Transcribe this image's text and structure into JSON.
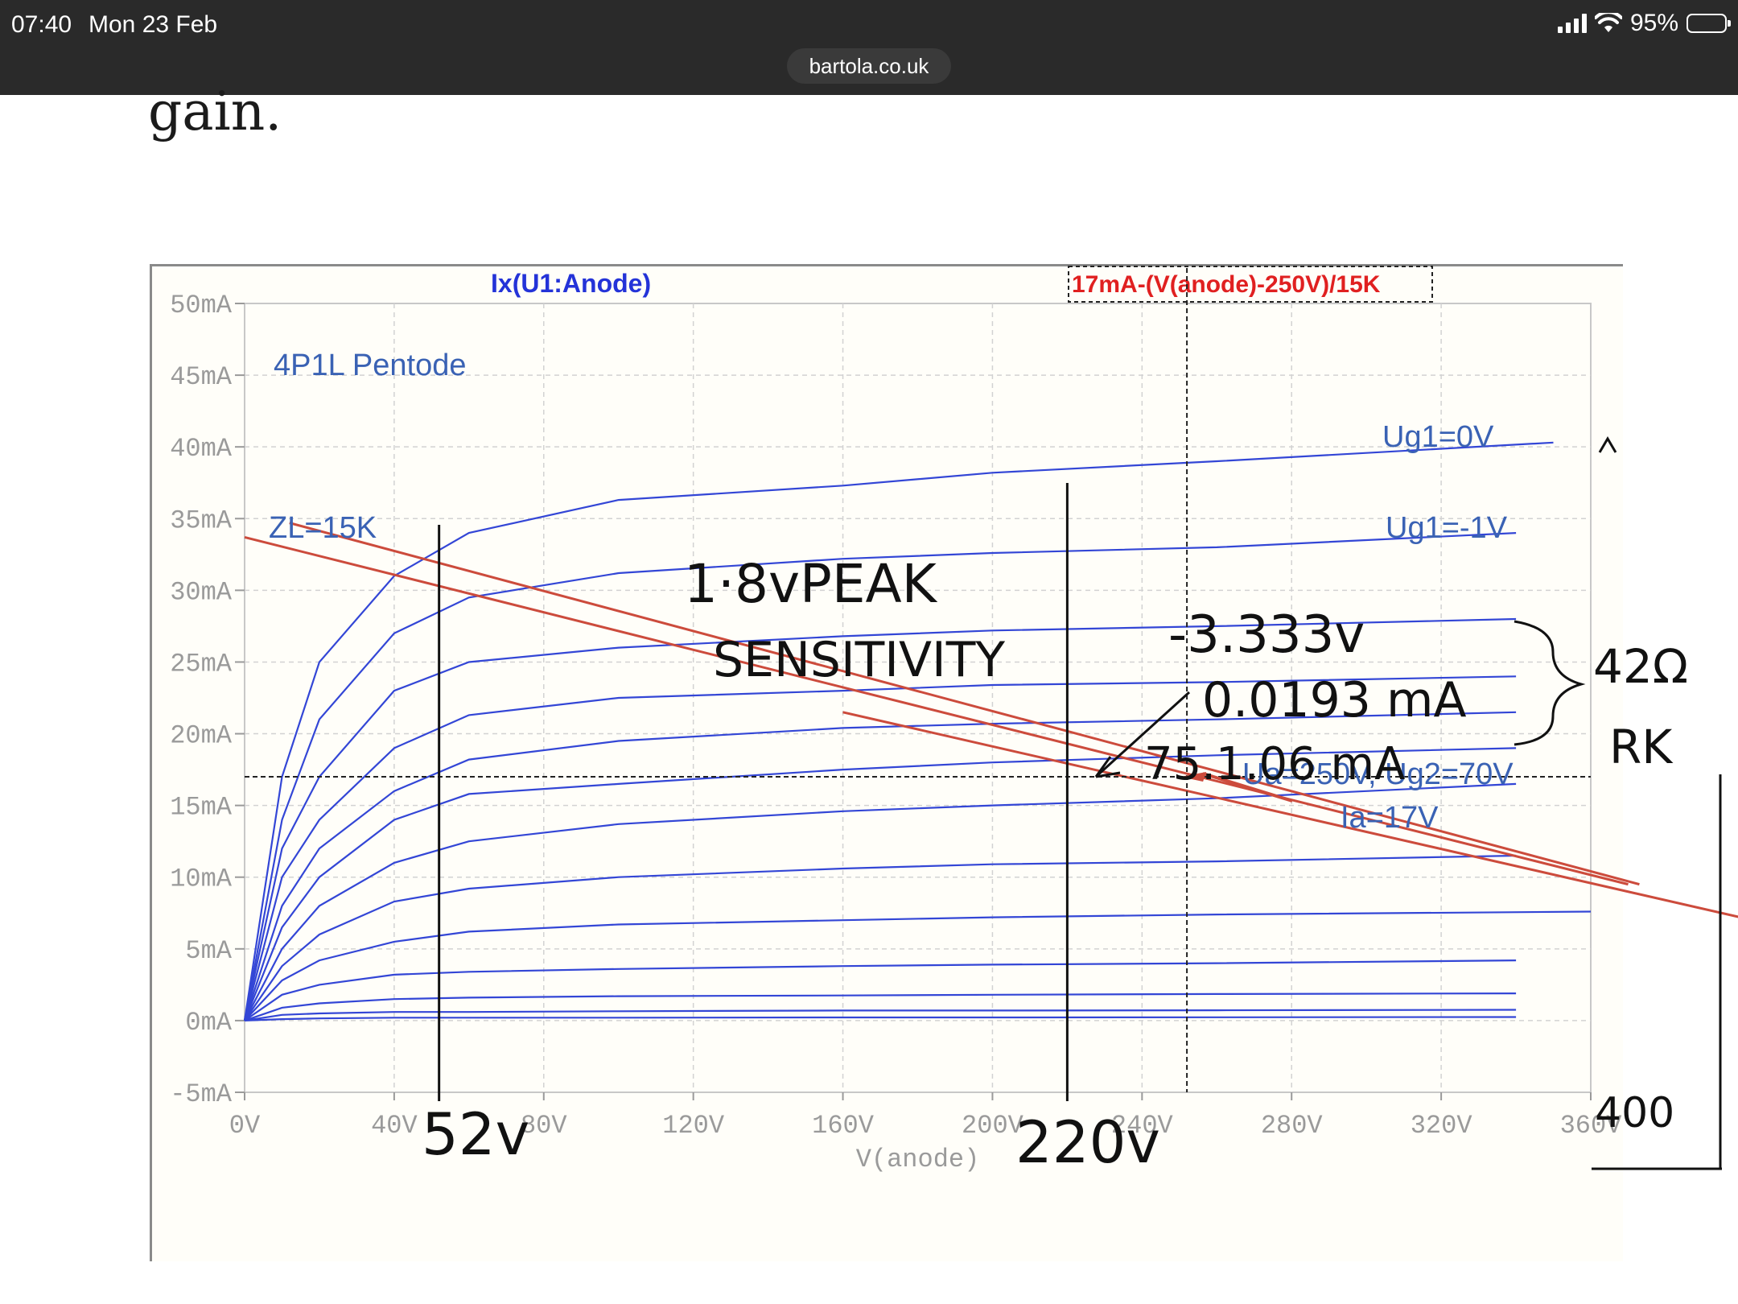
{
  "status_bar": {
    "time": "07:40",
    "date": "Mon 23 Feb",
    "battery": "95%",
    "url": "bartola.co.uk"
  },
  "article": {
    "text": "gain."
  },
  "colors": {
    "curves": "#3346d6",
    "red_line": "#cc4b3c",
    "red_label": "#e02020",
    "axis_text": "#9a9a9a",
    "annotation_text": "#3a62b4",
    "ink": "#111111"
  },
  "chart_data": {
    "type": "line",
    "title": "4P1L Pentode",
    "trace_labels": [
      "Ix(U1:Anode)",
      "17mA-(V(anode)-250V)/15K"
    ],
    "xlabel": "V(anode)",
    "ylabel": "",
    "xlim": [
      0,
      360
    ],
    "ylim": [
      -5,
      50
    ],
    "x_ticks": [
      "0V",
      "40V",
      "80V",
      "120V",
      "160V",
      "200V",
      "240V",
      "280V",
      "320V",
      "360V"
    ],
    "y_ticks": [
      "-5mA",
      "0mA",
      "5mA",
      "10mA",
      "15mA",
      "20mA",
      "25mA",
      "30mA",
      "35mA",
      "40mA",
      "45mA",
      "50mA"
    ],
    "grid": true,
    "series": [
      {
        "name": "Ug1=0V",
        "x": [
          0,
          10,
          20,
          40,
          60,
          100,
          160,
          200,
          260,
          350
        ],
        "y": [
          0,
          17,
          25,
          31,
          34,
          36.3,
          37.3,
          38.2,
          39,
          40.3
        ]
      },
      {
        "x": [
          0,
          10,
          20,
          40,
          60,
          100,
          160,
          200,
          260,
          340
        ],
        "y": [
          0,
          14,
          21,
          27,
          29.5,
          31.2,
          32.2,
          32.6,
          33,
          34
        ]
      },
      {
        "x": [
          0,
          10,
          20,
          40,
          60,
          100,
          160,
          200,
          260,
          340
        ],
        "y": [
          0,
          12,
          17,
          23,
          25,
          26,
          26.8,
          27.2,
          27.5,
          28
        ]
      },
      {
        "x": [
          0,
          10,
          20,
          40,
          60,
          100,
          160,
          200,
          260,
          340
        ],
        "y": [
          0,
          10,
          14,
          19,
          21.3,
          22.5,
          23,
          23.4,
          23.6,
          24
        ]
      },
      {
        "x": [
          0,
          10,
          20,
          40,
          60,
          100,
          160,
          200,
          260,
          340
        ],
        "y": [
          0,
          8,
          12,
          16,
          18.2,
          19.5,
          20.4,
          20.7,
          21,
          21.5
        ]
      },
      {
        "x": [
          0,
          10,
          20,
          40,
          60,
          100,
          160,
          200,
          260,
          340
        ],
        "y": [
          0,
          6.5,
          10,
          14,
          15.8,
          16.5,
          17.5,
          18,
          18.5,
          19
        ]
      },
      {
        "x": [
          0,
          10,
          20,
          40,
          60,
          100,
          160,
          200,
          260,
          340
        ],
        "y": [
          0,
          5,
          8,
          11,
          12.5,
          13.7,
          14.6,
          15,
          15.5,
          16.5
        ]
      },
      {
        "x": [
          0,
          10,
          20,
          40,
          60,
          100,
          160,
          200,
          260,
          340
        ],
        "y": [
          0,
          3.8,
          6,
          8.3,
          9.2,
          10,
          10.6,
          10.9,
          11.1,
          11.5
        ]
      },
      {
        "x": [
          0,
          10,
          20,
          40,
          60,
          100,
          160,
          200,
          260,
          360
        ],
        "y": [
          0,
          2.8,
          4.2,
          5.5,
          6.2,
          6.7,
          7,
          7.2,
          7.4,
          7.6
        ]
      },
      {
        "x": [
          0,
          10,
          20,
          40,
          60,
          100,
          160,
          200,
          260,
          340
        ],
        "y": [
          0,
          1.8,
          2.5,
          3.2,
          3.4,
          3.6,
          3.8,
          3.9,
          4,
          4.2
        ]
      },
      {
        "x": [
          0,
          10,
          20,
          40,
          60,
          100,
          160,
          200,
          260,
          340
        ],
        "y": [
          0,
          0.9,
          1.2,
          1.5,
          1.6,
          1.7,
          1.75,
          1.8,
          1.85,
          1.9
        ]
      },
      {
        "x": [
          0,
          10,
          20,
          40,
          60,
          100,
          160,
          200,
          260,
          340
        ],
        "y": [
          0,
          0.4,
          0.5,
          0.6,
          0.6,
          0.65,
          0.7,
          0.7,
          0.72,
          0.75
        ]
      },
      {
        "x": [
          0,
          10,
          20,
          40,
          60,
          100,
          160,
          200,
          260,
          340
        ],
        "y": [
          0,
          0.1,
          0.15,
          0.2,
          0.2,
          0.2,
          0.22,
          0.22,
          0.23,
          0.25
        ]
      }
    ],
    "load_lines": [
      {
        "x": [
          0,
          370
        ],
        "y": [
          33.7,
          9.5
        ]
      },
      {
        "x": [
          12,
          373
        ],
        "y": [
          34.7,
          9.5
        ]
      },
      {
        "x": [
          160,
          400
        ],
        "y": [
          21.5,
          7.2
        ]
      }
    ],
    "cursor": {
      "x": 252,
      "y": 17
    },
    "vertical_markers": [
      52,
      220,
      400
    ],
    "annotations": {
      "zl": "ZL=15K",
      "ug1_0": "Ug1=0V",
      "ug1_m1": "Ug1=-1V",
      "ua": "Ua=250V, Ug2=70V",
      "ia": "Ia=17V"
    },
    "handwritten": {
      "sensitivity_1": "1·8vPEAK",
      "sensitivity_2": "SENSITIVITY",
      "v1": "-3.333v",
      "a1": "0.0193 mA",
      "r1": "75.1.06 mA",
      "r2": "42Ω",
      "rk": "RK",
      "v52": "52v",
      "v220": "220v",
      "v400": "400"
    }
  }
}
